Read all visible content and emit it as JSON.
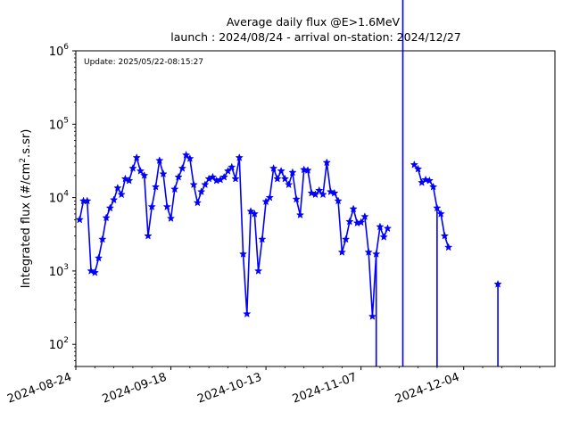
{
  "chart_data": {
    "type": "line",
    "title": "Average daily flux @E>1.6MeV",
    "subtitle": "launch : 2024/08/24 - arrival on-station: 2024/12/27",
    "annotation": "Update: 2025/05/22-08:15:27",
    "ylabel_prefix": "Integrated flux (#/cm",
    "ylabel_sup": "2",
    "ylabel_suffix": ".s.sr)",
    "y_scale": "log",
    "ylim": [
      50,
      1000000
    ],
    "xlim": [
      "2024-08-24",
      "2024-12-28"
    ],
    "grid": false,
    "y_ticks": [
      {
        "value": 100,
        "base": "10",
        "exp": "2"
      },
      {
        "value": 1000,
        "base": "10",
        "exp": "3"
      },
      {
        "value": 10000,
        "base": "10",
        "exp": "4"
      },
      {
        "value": 100000,
        "base": "10",
        "exp": "5"
      },
      {
        "value": 1000000,
        "base": "10",
        "exp": "6"
      }
    ],
    "x_ticks": [
      "2024-08-24",
      "2024-09-18",
      "2024-10-13",
      "2024-11-07",
      "2024-12-04"
    ],
    "x_minor_ticks": [
      "2024-08-29",
      "2024-09-03",
      "2024-09-08",
      "2024-09-13",
      "2024-09-23",
      "2024-09-28",
      "2024-10-03",
      "2024-10-08",
      "2024-10-18",
      "2024-10-23",
      "2024-10-28",
      "2024-11-02",
      "2024-11-12",
      "2024-11-17",
      "2024-11-22",
      "2024-11-27",
      "2024-12-09",
      "2024-12-14",
      "2024-12-19",
      "2024-12-24"
    ],
    "series": [
      {
        "color": "#0000ff",
        "marker": "star",
        "x": [
          "2024-08-25",
          "2024-08-26",
          "2024-08-27",
          "2024-08-28",
          "2024-08-29",
          "2024-08-30",
          "2024-08-31",
          "2024-09-01",
          "2024-09-02",
          "2024-09-03",
          "2024-09-04",
          "2024-09-05",
          "2024-09-06",
          "2024-09-07",
          "2024-09-08",
          "2024-09-09",
          "2024-09-10",
          "2024-09-11",
          "2024-09-12",
          "2024-09-13",
          "2024-09-14",
          "2024-09-15",
          "2024-09-16",
          "2024-09-17",
          "2024-09-18",
          "2024-09-19",
          "2024-09-20",
          "2024-09-21",
          "2024-09-22",
          "2024-09-23",
          "2024-09-24",
          "2024-09-25",
          "2024-09-26",
          "2024-09-27",
          "2024-09-28",
          "2024-09-29",
          "2024-09-30",
          "2024-10-01",
          "2024-10-02",
          "2024-10-03",
          "2024-10-04",
          "2024-10-05",
          "2024-10-06",
          "2024-10-07",
          "2024-10-08",
          "2024-10-09",
          "2024-10-10",
          "2024-10-11",
          "2024-10-12",
          "2024-10-13",
          "2024-10-14",
          "2024-10-15",
          "2024-10-16",
          "2024-10-17",
          "2024-10-18",
          "2024-10-19",
          "2024-10-20",
          "2024-10-21",
          "2024-10-22",
          "2024-10-23",
          "2024-10-24",
          "2024-10-25",
          "2024-10-26",
          "2024-10-27",
          "2024-10-28",
          "2024-10-29",
          "2024-10-30",
          "2024-10-31",
          "2024-11-01",
          "2024-11-02",
          "2024-11-03",
          "2024-11-04",
          "2024-11-05",
          "2024-11-06",
          "2024-11-07",
          "2024-11-08",
          "2024-11-09",
          "2024-11-10",
          "2024-11-11",
          "2024-11-12",
          "2024-11-13",
          "2024-11-14",
          "2024-11-15",
          "2024-11-16",
          "2024-11-17",
          "2024-11-18",
          "2024-11-19",
          "2024-11-20",
          "2024-11-21",
          "2024-11-22",
          "2024-11-23",
          "2024-11-24",
          "2024-11-25",
          "2024-11-26",
          "2024-11-27",
          "2024-11-28",
          "2024-11-29",
          "2024-11-30",
          "2024-12-01",
          "2024-12-02",
          "2024-12-03",
          "2024-12-04",
          "2024-12-05",
          "2024-12-06",
          "2024-12-07",
          "2024-12-08",
          "2024-12-09",
          "2024-12-10",
          "2024-12-11",
          "2024-12-12",
          "2024-12-13",
          "2024-12-14",
          "2024-12-15",
          "2024-12-16",
          "2024-12-17",
          "2024-12-18",
          "2024-12-19",
          "2024-12-20",
          "2024-12-21",
          "2024-12-22",
          "2024-12-23",
          "2024-12-24",
          "2024-12-25",
          "2024-12-26",
          "2024-12-27"
        ],
        "y": [
          5000,
          9000,
          9000,
          1000,
          950,
          1500,
          2700,
          5300,
          7200,
          9300,
          13500,
          11000,
          18000,
          17000,
          25000,
          35000,
          23000,
          20000,
          3000,
          7500,
          14000,
          32000,
          21000,
          7500,
          5200,
          13000,
          19000,
          25000,
          38000,
          34000,
          15000,
          8500,
          12000,
          15000,
          18000,
          19000,
          17000,
          17500,
          19000,
          23000,
          26000,
          18000,
          35000,
          1700,
          260,
          6500,
          6000,
          1000,
          2700,
          8800,
          10000,
          25000,
          18000,
          23000,
          18000,
          15000,
          22000,
          9500,
          5800,
          24000,
          23500,
          11500,
          11000,
          12500,
          11000,
          30000,
          12000,
          11500,
          9000,
          1800,
          2700,
          4700,
          7000,
          4500,
          4600,
          5500,
          1800,
          240,
          1700,
          4000,
          2900,
          3800,
          null,
          null,
          null,
          null,
          null,
          null,
          28000,
          24500,
          16000,
          17500,
          17000,
          14000,
          7200,
          6000,
          3000,
          2100,
          null,
          null,
          null,
          null,
          null,
          null,
          null,
          null,
          null,
          null,
          null,
          null,
          null,
          null,
          null,
          null,
          null,
          null,
          null,
          null,
          null,
          null,
          null,
          null,
          null,
          null,
          null
        ],
        "drops": [
          "2024-11-11",
          "2024-11-18",
          "2024-11-27"
        ],
        "isolated": [
          {
            "x": "2024-12-13",
            "y": 660
          }
        ]
      }
    ]
  }
}
